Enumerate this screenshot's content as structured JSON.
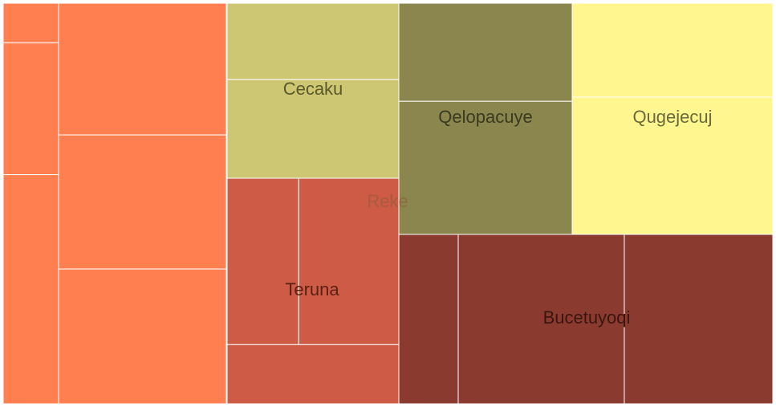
{
  "chart_data": {
    "type": "treemap",
    "root_label": "Reke",
    "groups": [
      {
        "name": "",
        "color": "#FF7F50",
        "nodes": [
          {
            "value": 2.4
          },
          {
            "value": 8.0
          },
          {
            "value": 13.9
          },
          {
            "value": 17.0
          },
          {
            "value": 17.3
          },
          {
            "value": 17.4
          }
        ]
      },
      {
        "name": "Cecaku",
        "color": "#CDC673",
        "nodes": [
          {
            "value": 10.0
          },
          {
            "value": 12.9
          }
        ]
      },
      {
        "name": "Teruna",
        "color": "#CD5B45",
        "nodes": [
          {
            "value": 8.8
          },
          {
            "value": 12.3
          },
          {
            "value": 7.5
          }
        ]
      },
      {
        "name": "Qelopacuye",
        "color": "#8B864E",
        "nodes": [
          {
            "value": 12.9
          },
          {
            "value": 17.5
          }
        ]
      },
      {
        "name": "Qugejecuj",
        "color": "#FFF68F",
        "nodes": [
          {
            "value": 14.5
          },
          {
            "value": 21.2
          }
        ]
      },
      {
        "name": "Bucetuyoqi",
        "color": "#8B3A2F",
        "nodes": [
          {
            "value": 10.8
          },
          {
            "value": 30.2
          },
          {
            "value": 27.0
          }
        ]
      }
    ]
  }
}
